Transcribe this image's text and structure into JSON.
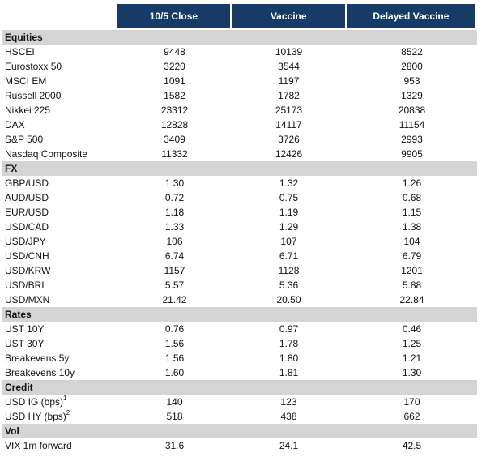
{
  "columns": [
    "10/5 Close",
    "Vaccine",
    "Delayed Vaccine"
  ],
  "sections": [
    {
      "title": "Equities",
      "rows": [
        {
          "label": "HSCEI",
          "v": [
            "9448",
            "10139",
            "8522"
          ]
        },
        {
          "label": "Eurostoxx 50",
          "v": [
            "3220",
            "3544",
            "2800"
          ]
        },
        {
          "label": "MSCI EM",
          "v": [
            "1091",
            "1197",
            "953"
          ]
        },
        {
          "label": "Russell 2000",
          "v": [
            "1582",
            "1782",
            "1329"
          ]
        },
        {
          "label": "Nikkei 225",
          "v": [
            "23312",
            "25173",
            "20838"
          ]
        },
        {
          "label": "DAX",
          "v": [
            "12828",
            "14117",
            "11154"
          ]
        },
        {
          "label": "S&P 500",
          "v": [
            "3409",
            "3726",
            "2993"
          ]
        },
        {
          "label": "Nasdaq Composite",
          "v": [
            "11332",
            "12426",
            "9905"
          ]
        }
      ]
    },
    {
      "title": "FX",
      "rows": [
        {
          "label": "GBP/USD",
          "v": [
            "1.30",
            "1.32",
            "1.26"
          ]
        },
        {
          "label": "AUD/USD",
          "v": [
            "0.72",
            "0.75",
            "0.68"
          ]
        },
        {
          "label": "EUR/USD",
          "v": [
            "1.18",
            "1.19",
            "1.15"
          ]
        },
        {
          "label": "USD/CAD",
          "v": [
            "1.33",
            "1.29",
            "1.38"
          ]
        },
        {
          "label": "USD/JPY",
          "v": [
            "106",
            "107",
            "104"
          ]
        },
        {
          "label": "USD/CNH",
          "v": [
            "6.74",
            "6.71",
            "6.79"
          ]
        },
        {
          "label": "USD/KRW",
          "v": [
            "1157",
            "1128",
            "1201"
          ]
        },
        {
          "label": "USD/BRL",
          "v": [
            "5.57",
            "5.36",
            "5.88"
          ]
        },
        {
          "label": "USD/MXN",
          "v": [
            "21.42",
            "20.50",
            "22.84"
          ]
        }
      ]
    },
    {
      "title": "Rates",
      "rows": [
        {
          "label": "UST 10Y",
          "v": [
            "0.76",
            "0.97",
            "0.46"
          ]
        },
        {
          "label": "UST 30Y",
          "v": [
            "1.56",
            "1.78",
            "1.25"
          ]
        },
        {
          "label": "Breakevens 5y",
          "v": [
            "1.56",
            "1.80",
            "1.21"
          ]
        },
        {
          "label": "Breakevens 10y",
          "v": [
            "1.60",
            "1.81",
            "1.30"
          ]
        }
      ]
    },
    {
      "title": "Credit",
      "rows": [
        {
          "label": "USD IG (bps)",
          "sup": "1",
          "v": [
            "140",
            "123",
            "170"
          ]
        },
        {
          "label": "USD HY (bps)",
          "sup": "2",
          "v": [
            "518",
            "438",
            "662"
          ]
        }
      ]
    },
    {
      "title": "Vol",
      "rows": [
        {
          "label": "VIX 1m forward",
          "v": [
            "31.6",
            "24.1",
            "42.5"
          ]
        }
      ]
    }
  ]
}
